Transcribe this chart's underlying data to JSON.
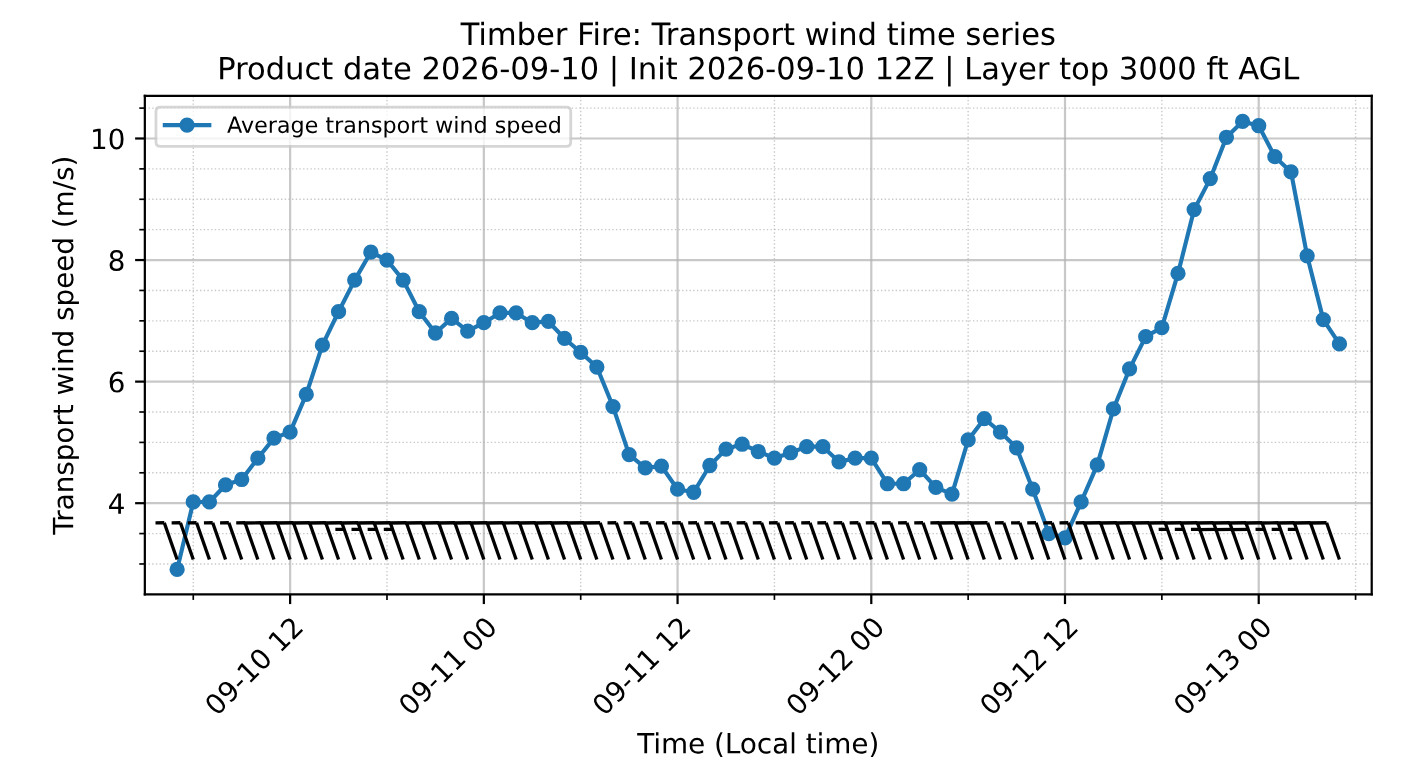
{
  "chart_data": {
    "type": "line",
    "title": "Timber Fire: Transport wind time series\nProduct date 2026-09-10 | Init 2026-09-10 12Z | Layer top 3000 ft AGL",
    "xlabel": "Time (Local time)",
    "ylabel": "Transport wind speed (m/s)",
    "x": [
      "2026-09-10T05:00",
      "2026-09-10T06:00",
      "2026-09-10T07:00",
      "2026-09-10T08:00",
      "2026-09-10T09:00",
      "2026-09-10T10:00",
      "2026-09-10T11:00",
      "2026-09-10T12:00",
      "2026-09-10T13:00",
      "2026-09-10T14:00",
      "2026-09-10T15:00",
      "2026-09-10T16:00",
      "2026-09-10T17:00",
      "2026-09-10T18:00",
      "2026-09-10T19:00",
      "2026-09-10T20:00",
      "2026-09-10T21:00",
      "2026-09-10T22:00",
      "2026-09-10T23:00",
      "2026-09-11T00:00",
      "2026-09-11T01:00",
      "2026-09-11T02:00",
      "2026-09-11T03:00",
      "2026-09-11T04:00",
      "2026-09-11T05:00",
      "2026-09-11T06:00",
      "2026-09-11T07:00",
      "2026-09-11T08:00",
      "2026-09-11T09:00",
      "2026-09-11T10:00",
      "2026-09-11T11:00",
      "2026-09-11T12:00",
      "2026-09-11T13:00",
      "2026-09-11T14:00",
      "2026-09-11T15:00",
      "2026-09-11T16:00",
      "2026-09-11T17:00",
      "2026-09-11T18:00",
      "2026-09-11T19:00",
      "2026-09-11T20:00",
      "2026-09-11T21:00",
      "2026-09-11T22:00",
      "2026-09-11T23:00",
      "2026-09-12T00:00",
      "2026-09-12T01:00",
      "2026-09-12T02:00",
      "2026-09-12T03:00",
      "2026-09-12T04:00",
      "2026-09-12T05:00",
      "2026-09-12T06:00",
      "2026-09-12T07:00",
      "2026-09-12T08:00",
      "2026-09-12T09:00",
      "2026-09-12T10:00",
      "2026-09-12T11:00",
      "2026-09-12T12:00",
      "2026-09-12T13:00",
      "2026-09-12T14:00",
      "2026-09-12T15:00",
      "2026-09-12T16:00",
      "2026-09-12T17:00",
      "2026-09-12T18:00",
      "2026-09-12T19:00",
      "2026-09-12T20:00",
      "2026-09-12T21:00",
      "2026-09-12T22:00",
      "2026-09-12T23:00",
      "2026-09-13T00:00",
      "2026-09-13T01:00",
      "2026-09-13T02:00",
      "2026-09-13T03:00",
      "2026-09-13T04:00",
      "2026-09-13T05:00"
    ],
    "series": [
      {
        "name": "Average transport wind speed",
        "color": "#1f77b4",
        "values": [
          2.91,
          4.02,
          4.02,
          4.3,
          4.39,
          4.74,
          5.07,
          5.17,
          5.79,
          6.6,
          7.15,
          7.67,
          8.13,
          8.0,
          7.67,
          7.15,
          6.8,
          7.04,
          6.83,
          6.97,
          7.13,
          7.13,
          6.97,
          6.99,
          6.71,
          6.48,
          6.24,
          5.59,
          4.8,
          4.58,
          4.61,
          4.23,
          4.18,
          4.62,
          4.89,
          4.97,
          4.85,
          4.74,
          4.83,
          4.93,
          4.93,
          4.68,
          4.74,
          4.74,
          4.32,
          4.32,
          4.55,
          4.26,
          4.15,
          5.04,
          5.39,
          5.17,
          4.91,
          4.23,
          3.5,
          3.43,
          4.02,
          4.63,
          5.55,
          6.21,
          6.74,
          6.89,
          7.78,
          8.83,
          9.34,
          10.02,
          10.28,
          10.21,
          9.7,
          9.45,
          8.07,
          7.02,
          6.62
        ]
      }
    ],
    "xlim": [
      "2026-09-10T03:00",
      "2026-09-13T07:00"
    ],
    "xticks": [
      {
        "value": "2026-09-10T12:00",
        "label": "09-10 12"
      },
      {
        "value": "2026-09-11T00:00",
        "label": "09-11 00"
      },
      {
        "value": "2026-09-11T12:00",
        "label": "09-11 12"
      },
      {
        "value": "2026-09-12T00:00",
        "label": "09-12 00"
      },
      {
        "value": "2026-09-12T12:00",
        "label": "09-12 12"
      },
      {
        "value": "2026-09-13T00:00",
        "label": "09-13 00"
      }
    ],
    "ylim": [
      2.5,
      10.7
    ],
    "yticks": [
      4,
      6,
      8,
      10
    ],
    "grid": true,
    "legend": "top left",
    "marker": "circle",
    "line_style": "solid"
  }
}
